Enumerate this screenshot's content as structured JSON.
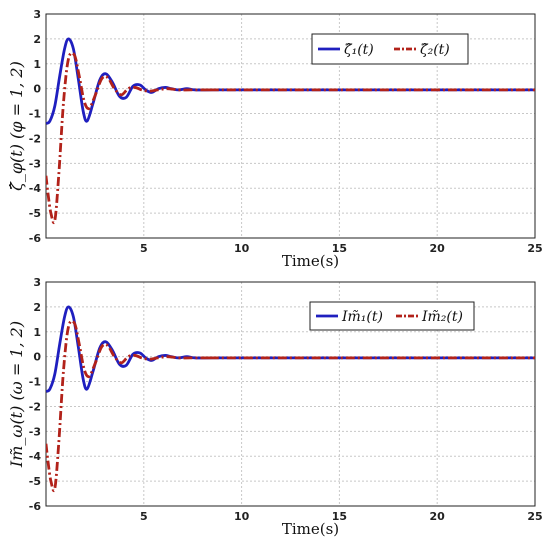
{
  "chart_data": [
    {
      "type": "line",
      "xlabel": "Time(s)",
      "ylabel": "ζ̂_φ(t) (φ = 1, 2)",
      "xlim": [
        0,
        25
      ],
      "ylim": [
        -6,
        3
      ],
      "xticks": [
        "5",
        "10",
        "15",
        "20",
        "25"
      ],
      "yticks": [
        "3",
        "2",
        "1",
        "0",
        "-1",
        "-2",
        "-3",
        "-4",
        "-5",
        "-6"
      ],
      "grid": true,
      "legend": "top-right",
      "series": [
        {
          "name": "ζ̂₁(t)",
          "color": "#1f1fbf",
          "style": "solid",
          "x": [
            0,
            0.2,
            0.45,
            0.7,
            0.95,
            1.15,
            1.4,
            1.65,
            1.9,
            2.1,
            2.4,
            2.75,
            3.05,
            3.4,
            3.75,
            4.1,
            4.45,
            4.8,
            5.1,
            5.4,
            5.75,
            6.1,
            6.4,
            6.8,
            7.2,
            7.6,
            8.5,
            10,
            25
          ],
          "y": [
            -1.4,
            -1.3,
            -0.7,
            0.5,
            1.6,
            2.0,
            1.6,
            0.4,
            -0.9,
            -1.3,
            -0.6,
            0.35,
            0.6,
            0.25,
            -0.3,
            -0.35,
            0.1,
            0.15,
            -0.05,
            -0.15,
            0.0,
            0.05,
            0.0,
            -0.05,
            0.0,
            -0.05,
            -0.05,
            -0.05,
            -0.05
          ]
        },
        {
          "name": "ζ̂₂(t)",
          "color": "#b2221a",
          "style": "dashdot",
          "x": [
            0,
            0.1,
            0.25,
            0.45,
            0.65,
            0.9,
            1.15,
            1.45,
            1.7,
            1.95,
            2.2,
            2.5,
            2.85,
            3.15,
            3.5,
            3.85,
            4.2,
            4.55,
            4.9,
            5.3,
            5.7,
            6.2,
            6.8,
            7.4,
            8.5,
            10,
            25
          ],
          "y": [
            -3.5,
            -4.2,
            -5.0,
            -5.3,
            -3.5,
            -0.5,
            1.2,
            1.35,
            0.5,
            -0.5,
            -0.8,
            -0.3,
            0.4,
            0.45,
            0.0,
            -0.25,
            0.0,
            0.05,
            -0.05,
            -0.1,
            -0.05,
            0.0,
            -0.05,
            -0.05,
            -0.05,
            -0.05,
            -0.05
          ]
        }
      ]
    },
    {
      "type": "line",
      "xlabel": "Time(s)",
      "ylabel": "Im̃_ω(t) (ω = 1, 2)",
      "xlim": [
        0,
        25
      ],
      "ylim": [
        -6,
        3
      ],
      "xticks": [
        "5",
        "10",
        "15",
        "20",
        "25"
      ],
      "yticks": [
        "3",
        "2",
        "1",
        "0",
        "-1",
        "-2",
        "-3",
        "-4",
        "-5",
        "-6"
      ],
      "grid": true,
      "legend": "top-right",
      "series": [
        {
          "name": "Im̃₁(t)",
          "color": "#1f1fbf",
          "style": "solid",
          "x": [
            0,
            0.2,
            0.45,
            0.7,
            0.95,
            1.15,
            1.4,
            1.65,
            1.9,
            2.1,
            2.4,
            2.75,
            3.05,
            3.4,
            3.75,
            4.1,
            4.45,
            4.8,
            5.1,
            5.4,
            5.75,
            6.1,
            6.4,
            6.8,
            7.2,
            7.6,
            8.5,
            10,
            25
          ],
          "y": [
            -1.4,
            -1.3,
            -0.7,
            0.5,
            1.6,
            2.0,
            1.6,
            0.4,
            -0.9,
            -1.3,
            -0.6,
            0.35,
            0.6,
            0.25,
            -0.3,
            -0.35,
            0.1,
            0.15,
            -0.05,
            -0.15,
            0.0,
            0.05,
            0.0,
            -0.05,
            0.0,
            -0.05,
            -0.05,
            -0.05,
            -0.05
          ]
        },
        {
          "name": "Im̃₂(t)",
          "color": "#b2221a",
          "style": "dashdot",
          "x": [
            0,
            0.1,
            0.25,
            0.45,
            0.65,
            0.9,
            1.15,
            1.45,
            1.7,
            1.95,
            2.2,
            2.5,
            2.85,
            3.15,
            3.5,
            3.85,
            4.2,
            4.55,
            4.9,
            5.3,
            5.7,
            6.2,
            6.8,
            7.4,
            8.5,
            10,
            25
          ],
          "y": [
            -3.5,
            -4.2,
            -5.0,
            -5.3,
            -3.5,
            -0.5,
            1.2,
            1.35,
            0.5,
            -0.5,
            -0.8,
            -0.3,
            0.4,
            0.45,
            0.0,
            -0.25,
            0.0,
            0.05,
            -0.05,
            -0.1,
            -0.05,
            0.0,
            -0.05,
            -0.05,
            -0.05,
            -0.05,
            -0.05
          ]
        }
      ]
    }
  ]
}
